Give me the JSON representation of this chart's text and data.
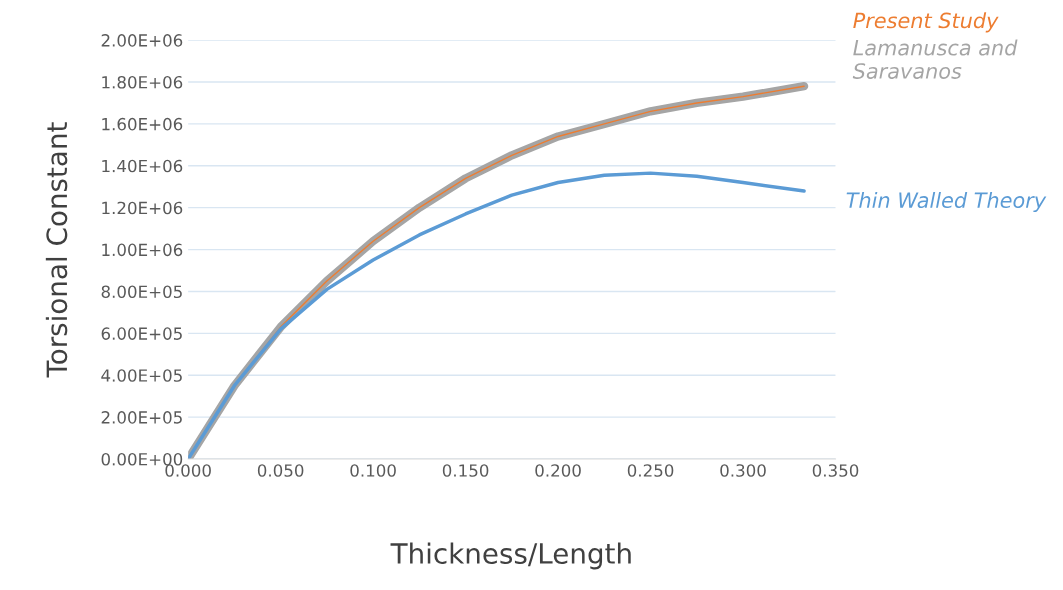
{
  "chart_data": {
    "type": "line",
    "xlabel": "Thickness/Length",
    "ylabel": "Torsional Constant",
    "x": [
      0,
      0.025,
      0.05,
      0.075,
      0.1,
      0.125,
      0.15,
      0.175,
      0.2,
      0.225,
      0.25,
      0.275,
      0.3,
      0.333
    ],
    "series": [
      {
        "name": "Lamanusca and Saravanos",
        "color": "#a5a5a5",
        "values": [
          0,
          350000,
          630000,
          850000,
          1040000,
          1200000,
          1340000,
          1450000,
          1540000,
          1600000,
          1660000,
          1700000,
          1730000,
          1780000
        ]
      },
      {
        "name": "Present Study",
        "color": "#ed7d31",
        "values": [
          0,
          350000,
          630000,
          850000,
          1040000,
          1200000,
          1340000,
          1450000,
          1540000,
          1600000,
          1660000,
          1700000,
          1730000,
          1780000
        ]
      },
      {
        "name": "Thin Walled Theory",
        "color": "#5b9bd5",
        "values": [
          0,
          350000,
          620000,
          810000,
          950000,
          1070000,
          1170000,
          1260000,
          1320000,
          1355000,
          1365000,
          1350000,
          1320000,
          1280000
        ]
      }
    ],
    "xlim": [
      0,
      0.35
    ],
    "xticks": [
      {
        "value": 0,
        "label": "0.000"
      },
      {
        "value": 0.05,
        "label": "0.050"
      },
      {
        "value": 0.1,
        "label": "0.100"
      },
      {
        "value": 0.15,
        "label": "0.150"
      },
      {
        "value": 0.2,
        "label": "0.200"
      },
      {
        "value": 0.25,
        "label": "0.250"
      },
      {
        "value": 0.3,
        "label": "0.300"
      },
      {
        "value": 0.35,
        "label": "0.350"
      }
    ],
    "ylim": [
      0,
      2000000
    ],
    "yticks": [
      {
        "value": 0,
        "label": "0.00E+00"
      },
      {
        "value": 200000,
        "label": "2.00E+05"
      },
      {
        "value": 400000,
        "label": "4.00E+05"
      },
      {
        "value": 600000,
        "label": "6.00E+05"
      },
      {
        "value": 800000,
        "label": "8.00E+05"
      },
      {
        "value": 1000000,
        "label": "1.00E+06"
      },
      {
        "value": 1200000,
        "label": "1.20E+06"
      },
      {
        "value": 1400000,
        "label": "1.40E+06"
      },
      {
        "value": 1600000,
        "label": "1.60E+06"
      },
      {
        "value": 1800000,
        "label": "1.80E+06"
      },
      {
        "value": 2000000,
        "label": "2.00E+06"
      }
    ],
    "grid": "y",
    "legend": false
  }
}
